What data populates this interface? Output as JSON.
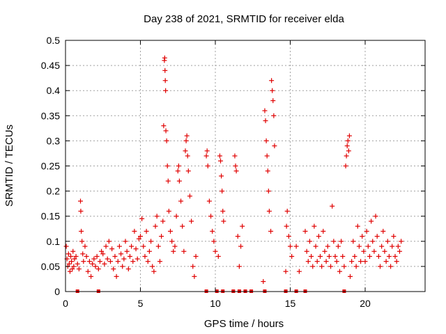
{
  "chart_data": {
    "type": "scatter",
    "title": "Day 238 of 2021, SRMTID for receiver elda",
    "xlabel": "GPS time / hours",
    "ylabel": "SRMTID / TECUs",
    "xlim": [
      0,
      24
    ],
    "ylim": [
      0,
      0.5
    ],
    "grid": true,
    "marker": "+",
    "color": "#e00000",
    "x_ticks": [
      0,
      5,
      10,
      15,
      20
    ],
    "y_ticks": [
      0,
      0.05,
      0.1,
      0.15,
      0.2,
      0.25,
      0.3,
      0.35,
      0.4,
      0.45,
      0.5
    ],
    "y_tick_labels": [
      "0",
      "0.05",
      "0.1",
      "0.15",
      "0.2",
      "0.25",
      "0.3",
      "0.35",
      "0.4",
      "0.45",
      "0.5"
    ],
    "x_tick_labels": [
      "0",
      "5",
      "10",
      "15",
      "20"
    ],
    "series": [
      {
        "name": "SRMTID",
        "points": [
          [
            0.05,
            0.09
          ],
          [
            0.1,
            0.065
          ],
          [
            0.15,
            0.05
          ],
          [
            0.2,
            0.075
          ],
          [
            0.25,
            0.055
          ],
          [
            0.3,
            0.04
          ],
          [
            0.35,
            0.07
          ],
          [
            0.4,
            0.06
          ],
          [
            0.45,
            0.045
          ],
          [
            0.5,
            0.08
          ],
          [
            0.55,
            0.05
          ],
          [
            0.6,
            0.065
          ],
          [
            0.7,
            0.07
          ],
          [
            0.8,
            0.055
          ],
          [
            0.9,
            0.045
          ],
          [
            1.0,
            0.18
          ],
          [
            1.02,
            0.16
          ],
          [
            1.05,
            0.12
          ],
          [
            1.1,
            0.1
          ],
          [
            1.15,
            0.075
          ],
          [
            1.2,
            0.06
          ],
          [
            1.3,
            0.09
          ],
          [
            1.4,
            0.07
          ],
          [
            1.5,
            0.04
          ],
          [
            1.6,
            0.06
          ],
          [
            1.7,
            0.03
          ],
          [
            1.8,
            0.055
          ],
          [
            1.9,
            0.065
          ],
          [
            2.0,
            0.05
          ],
          [
            2.1,
            0.07
          ],
          [
            2.2,
            0.045
          ],
          [
            2.3,
            0.06
          ],
          [
            2.4,
            0.08
          ],
          [
            2.5,
            0.075
          ],
          [
            2.6,
            0.055
          ],
          [
            2.7,
            0.09
          ],
          [
            2.8,
            0.065
          ],
          [
            2.9,
            0.1
          ],
          [
            3.0,
            0.06
          ],
          [
            3.1,
            0.085
          ],
          [
            3.2,
            0.045
          ],
          [
            3.3,
            0.07
          ],
          [
            3.4,
            0.03
          ],
          [
            3.5,
            0.06
          ],
          [
            3.6,
            0.09
          ],
          [
            3.7,
            0.075
          ],
          [
            3.8,
            0.05
          ],
          [
            3.9,
            0.065
          ],
          [
            4.0,
            0.1
          ],
          [
            4.1,
            0.08
          ],
          [
            4.2,
            0.045
          ],
          [
            4.3,
            0.07
          ],
          [
            4.4,
            0.09
          ],
          [
            4.5,
            0.06
          ],
          [
            4.6,
            0.12
          ],
          [
            4.7,
            0.085
          ],
          [
            4.8,
            0.065
          ],
          [
            4.9,
            0.105
          ],
          [
            5.0,
            0.11
          ],
          [
            5.1,
            0.145
          ],
          [
            5.2,
            0.09
          ],
          [
            5.3,
            0.07
          ],
          [
            5.4,
            0.12
          ],
          [
            5.5,
            0.06
          ],
          [
            5.6,
            0.08
          ],
          [
            5.7,
            0.1
          ],
          [
            5.8,
            0.05
          ],
          [
            5.9,
            0.04
          ],
          [
            6.0,
            0.13
          ],
          [
            6.1,
            0.15
          ],
          [
            6.2,
            0.09
          ],
          [
            6.3,
            0.06
          ],
          [
            6.4,
            0.11
          ],
          [
            6.5,
            0.14
          ],
          [
            6.55,
            0.33
          ],
          [
            6.6,
            0.46
          ],
          [
            6.62,
            0.465
          ],
          [
            6.64,
            0.44
          ],
          [
            6.66,
            0.42
          ],
          [
            6.68,
            0.4
          ],
          [
            6.7,
            0.32
          ],
          [
            6.75,
            0.3
          ],
          [
            6.8,
            0.25
          ],
          [
            6.85,
            0.22
          ],
          [
            6.9,
            0.16
          ],
          [
            7.0,
            0.12
          ],
          [
            7.1,
            0.1
          ],
          [
            7.2,
            0.08
          ],
          [
            7.3,
            0.09
          ],
          [
            7.4,
            0.15
          ],
          [
            7.5,
            0.24
          ],
          [
            7.55,
            0.25
          ],
          [
            7.6,
            0.22
          ],
          [
            7.7,
            0.18
          ],
          [
            7.8,
            0.13
          ],
          [
            7.9,
            0.08
          ],
          [
            8.0,
            0.28
          ],
          [
            8.05,
            0.3
          ],
          [
            8.1,
            0.31
          ],
          [
            8.15,
            0.27
          ],
          [
            8.2,
            0.24
          ],
          [
            8.3,
            0.19
          ],
          [
            8.4,
            0.14
          ],
          [
            8.5,
            0.05
          ],
          [
            8.6,
            0.03
          ],
          [
            8.7,
            0.07
          ],
          [
            9.4,
            0.27
          ],
          [
            9.45,
            0.28
          ],
          [
            9.5,
            0.25
          ],
          [
            9.6,
            0.18
          ],
          [
            9.7,
            0.15
          ],
          [
            9.8,
            0.12
          ],
          [
            9.9,
            0.1
          ],
          [
            10.0,
            0.08
          ],
          [
            10.2,
            0.07
          ],
          [
            10.3,
            0.27
          ],
          [
            10.35,
            0.26
          ],
          [
            10.4,
            0.23
          ],
          [
            10.45,
            0.2
          ],
          [
            10.5,
            0.16
          ],
          [
            10.55,
            0.14
          ],
          [
            11.3,
            0.27
          ],
          [
            11.35,
            0.25
          ],
          [
            11.4,
            0.24
          ],
          [
            11.5,
            0.11
          ],
          [
            11.6,
            0.05
          ],
          [
            11.7,
            0.09
          ],
          [
            11.8,
            0.13
          ],
          [
            13.2,
            0.02
          ],
          [
            13.3,
            0.36
          ],
          [
            13.35,
            0.34
          ],
          [
            13.4,
            0.3
          ],
          [
            13.45,
            0.27
          ],
          [
            13.5,
            0.24
          ],
          [
            13.55,
            0.2
          ],
          [
            13.6,
            0.16
          ],
          [
            13.7,
            0.12
          ],
          [
            13.75,
            0.42
          ],
          [
            13.8,
            0.4
          ],
          [
            13.85,
            0.38
          ],
          [
            13.9,
            0.35
          ],
          [
            13.95,
            0.29
          ],
          [
            14.7,
            0.04
          ],
          [
            14.75,
            0.13
          ],
          [
            14.8,
            0.16
          ],
          [
            14.9,
            0.11
          ],
          [
            15.0,
            0.09
          ],
          [
            15.1,
            0.07
          ],
          [
            15.4,
            0.09
          ],
          [
            15.6,
            0.04
          ],
          [
            16.0,
            0.12
          ],
          [
            16.1,
            0.08
          ],
          [
            16.2,
            0.06
          ],
          [
            16.3,
            0.1
          ],
          [
            16.4,
            0.07
          ],
          [
            16.5,
            0.05
          ],
          [
            16.6,
            0.13
          ],
          [
            16.7,
            0.09
          ],
          [
            16.8,
            0.06
          ],
          [
            16.9,
            0.11
          ],
          [
            17.0,
            0.07
          ],
          [
            17.1,
            0.05
          ],
          [
            17.2,
            0.12
          ],
          [
            17.3,
            0.08
          ],
          [
            17.4,
            0.06
          ],
          [
            17.5,
            0.09
          ],
          [
            17.6,
            0.07
          ],
          [
            17.7,
            0.05
          ],
          [
            17.8,
            0.17
          ],
          [
            17.9,
            0.1
          ],
          [
            18.0,
            0.07
          ],
          [
            18.1,
            0.06
          ],
          [
            18.2,
            0.09
          ],
          [
            18.3,
            0.04
          ],
          [
            18.4,
            0.1
          ],
          [
            18.5,
            0.07
          ],
          [
            18.6,
            0.05
          ],
          [
            18.7,
            0.25
          ],
          [
            18.75,
            0.27
          ],
          [
            18.8,
            0.29
          ],
          [
            18.85,
            0.3
          ],
          [
            18.9,
            0.28
          ],
          [
            18.95,
            0.31
          ],
          [
            19.0,
            0.03
          ],
          [
            19.1,
            0.06
          ],
          [
            19.2,
            0.1
          ],
          [
            19.3,
            0.07
          ],
          [
            19.4,
            0.05
          ],
          [
            19.5,
            0.13
          ],
          [
            19.6,
            0.09
          ],
          [
            19.7,
            0.06
          ],
          [
            19.8,
            0.11
          ],
          [
            19.9,
            0.08
          ],
          [
            20.0,
            0.06
          ],
          [
            20.1,
            0.12
          ],
          [
            20.2,
            0.09
          ],
          [
            20.3,
            0.07
          ],
          [
            20.4,
            0.14
          ],
          [
            20.5,
            0.1
          ],
          [
            20.6,
            0.08
          ],
          [
            20.7,
            0.15
          ],
          [
            20.8,
            0.11
          ],
          [
            20.9,
            0.07
          ],
          [
            21.0,
            0.05
          ],
          [
            21.1,
            0.09
          ],
          [
            21.2,
            0.12
          ],
          [
            21.3,
            0.08
          ],
          [
            21.4,
            0.06
          ],
          [
            21.5,
            0.1
          ],
          [
            21.6,
            0.07
          ],
          [
            21.7,
            0.05
          ],
          [
            21.8,
            0.09
          ],
          [
            21.9,
            0.11
          ],
          [
            22.0,
            0.07
          ],
          [
            22.1,
            0.06
          ],
          [
            22.2,
            0.09
          ],
          [
            22.3,
            0.08
          ],
          [
            22.4,
            0.1
          ]
        ]
      }
    ],
    "zero_markers_x": [
      0.8,
      2.2,
      9.4,
      10.1,
      10.5,
      11.2,
      11.6,
      12.0,
      12.4,
      13.3,
      14.7,
      15.4,
      16.0,
      18.6
    ]
  }
}
